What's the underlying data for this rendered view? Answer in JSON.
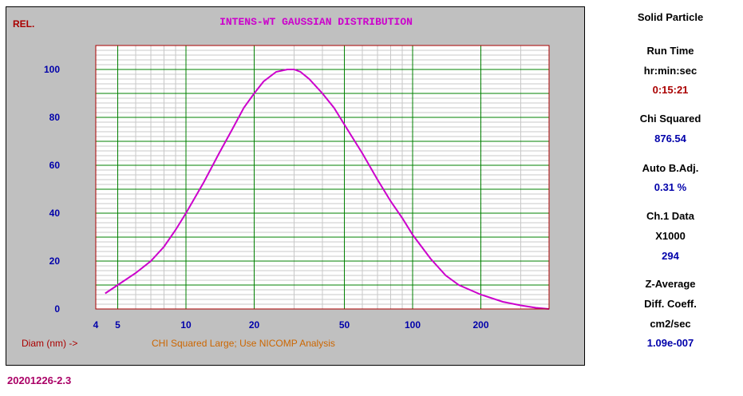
{
  "file_id": "20201226-2.3",
  "side_panel": {
    "mode": "Solid Particle",
    "run_time_label": "Run Time",
    "run_time_units": "hr:min:sec",
    "run_time_value": "0:15:21",
    "chi_squared_label": "Chi Squared",
    "chi_squared_value": "876.54",
    "auto_badj_label": "Auto B.Adj.",
    "auto_badj_value": "0.31 %",
    "ch1_label": "Ch.1 Data",
    "ch1_multiplier": "X1000",
    "ch1_value": "294",
    "zavg_label": "Z-Average",
    "diff_label": "Diff. Coeff.",
    "diff_units": "cm2/sec",
    "diff_value": "1.09e-007"
  },
  "colors": {
    "panel_bg": "#c0c0c0",
    "plot_bg": "#ffffff",
    "grid_major": "#008000",
    "grid_minor": "#c8c8c8",
    "frame": "#aa0000",
    "curve": "#cc00cc",
    "title": "#cc00cc",
    "ticks": "#0000aa",
    "xlabel": "#aa0000",
    "message": "#cc6600"
  },
  "chart_data": {
    "type": "line",
    "title": "INTENS-WT GAUSSIAN DISTRIBUTION",
    "ylabel": "REL.",
    "xlabel": "Diam (nm) ->",
    "message": "CHI Squared Large; Use NICOMP Analysis",
    "x_scale": "log",
    "xlim": [
      4,
      400
    ],
    "ylim": [
      0,
      110
    ],
    "x_tick_labels": [
      {
        "value": 4,
        "label": "4"
      },
      {
        "value": 5,
        "label": "5"
      },
      {
        "value": 10,
        "label": "10"
      },
      {
        "value": 20,
        "label": "20"
      },
      {
        "value": 50,
        "label": "50"
      },
      {
        "value": 100,
        "label": "100"
      },
      {
        "value": 200,
        "label": "200"
      }
    ],
    "y_tick_labels": [
      {
        "value": 0,
        "label": "0"
      },
      {
        "value": 20,
        "label": "20"
      },
      {
        "value": 40,
        "label": "40"
      },
      {
        "value": 60,
        "label": "60"
      },
      {
        "value": 80,
        "label": "80"
      },
      {
        "value": 100,
        "label": "100"
      }
    ],
    "x_major_grid": [
      5,
      10,
      20,
      50,
      100,
      200,
      400
    ],
    "x_minor_grid": [
      6,
      7,
      8,
      9,
      30,
      40,
      60,
      70,
      80,
      90,
      300
    ],
    "y_major_grid": [
      10,
      20,
      30,
      40,
      50,
      60,
      70,
      80,
      90,
      100
    ],
    "y_minor_step": 2,
    "grid": true,
    "series": [
      {
        "x": [
          4.4,
          5.0,
          6.0,
          7.0,
          8.0,
          9.0,
          10.0,
          12.0,
          14.0,
          16.0,
          18.0,
          20.0,
          22.0,
          25.0,
          28.0,
          30.0,
          32.0,
          35.0,
          40.0,
          45.0,
          50.0,
          60.0,
          70.0,
          80.0,
          90.0,
          100.0,
          120.0,
          140.0,
          160.0,
          200.0,
          250.0,
          300.0,
          350.0,
          400.0
        ],
        "y": [
          6.5,
          10,
          15,
          20,
          26,
          33,
          40,
          53,
          65,
          75,
          84,
          90,
          95,
          99,
          100,
          100,
          99,
          96,
          90,
          84,
          77,
          65,
          54,
          45,
          38,
          31,
          21,
          14,
          10,
          6,
          3,
          1.5,
          0.5,
          0
        ]
      }
    ]
  }
}
